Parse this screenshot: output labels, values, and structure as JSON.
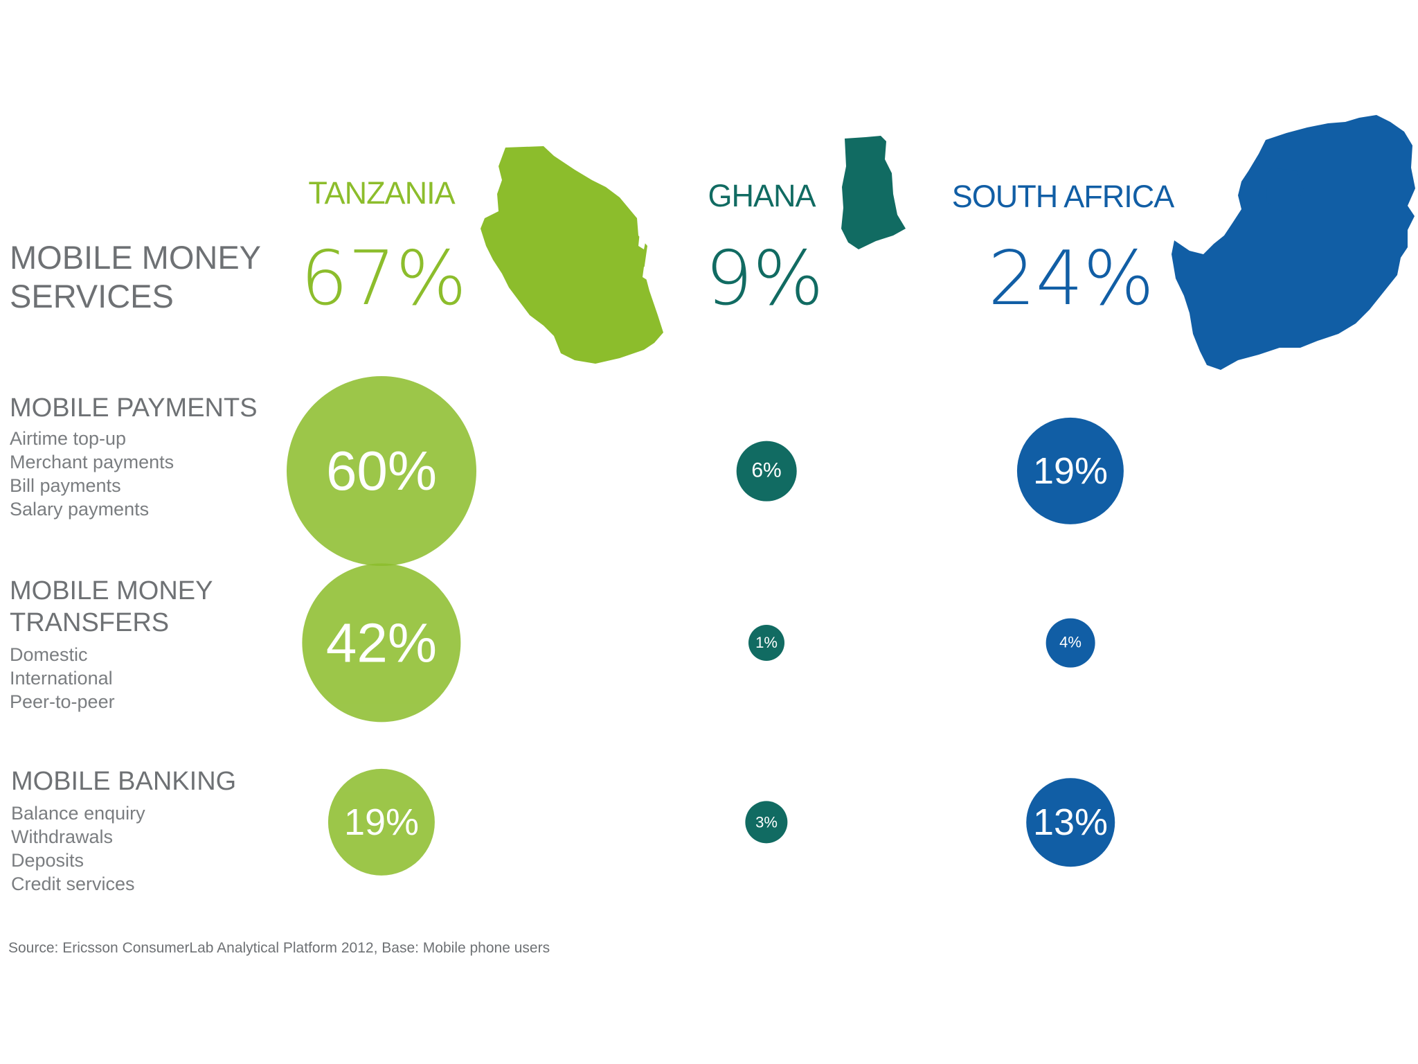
{
  "header": {
    "title_line1": "MOBILE MONEY",
    "title_line2": "SERVICES"
  },
  "countries": [
    {
      "name": "TANZANIA",
      "overall": "67%",
      "color": "#8cbd2c",
      "map_icon": "tanzania-map-icon"
    },
    {
      "name": "GHANA",
      "overall": "9%",
      "color": "#116b62",
      "map_icon": "ghana-map-icon"
    },
    {
      "name": "SOUTH AFRICA",
      "overall": "24%",
      "color": "#115ea5",
      "map_icon": "south-africa-map-icon"
    }
  ],
  "categories": [
    {
      "title_lines": [
        "MOBILE PAYMENTS"
      ],
      "items": [
        "Airtime top-up",
        "Merchant payments",
        "Bill payments",
        "Salary payments"
      ]
    },
    {
      "title_lines": [
        "MOBILE MONEY",
        "TRANSFERS"
      ],
      "items": [
        "Domestic",
        "International",
        "Peer-to-peer"
      ]
    },
    {
      "title_lines": [
        "MOBILE BANKING"
      ],
      "items": [
        "Balance enquiry",
        "Withdrawals",
        "Deposits",
        "Credit services"
      ]
    }
  ],
  "chart_data": {
    "type": "bubble",
    "title": "MOBILE MONEY SERVICES",
    "categories": [
      "MOBILE PAYMENTS",
      "MOBILE MONEY TRANSFERS",
      "MOBILE BANKING"
    ],
    "series": [
      {
        "name": "TANZANIA",
        "overall": 67,
        "values": [
          60,
          42,
          19
        ],
        "labels": [
          "60%",
          "42%",
          "19%"
        ],
        "color": "#8cbd2c"
      },
      {
        "name": "GHANA",
        "overall": 9,
        "values": [
          6,
          1,
          3
        ],
        "labels": [
          "6%",
          "1%",
          "3%"
        ],
        "color": "#116b62"
      },
      {
        "name": "SOUTH AFRICA",
        "overall": 24,
        "values": [
          19,
          4,
          13
        ],
        "labels": [
          "19%",
          "4%",
          "13%"
        ],
        "color": "#115ea5"
      }
    ]
  },
  "footer": {
    "source": "Source: Ericsson ConsumerLab Analytical Platform 2012, Base: Mobile phone users"
  }
}
